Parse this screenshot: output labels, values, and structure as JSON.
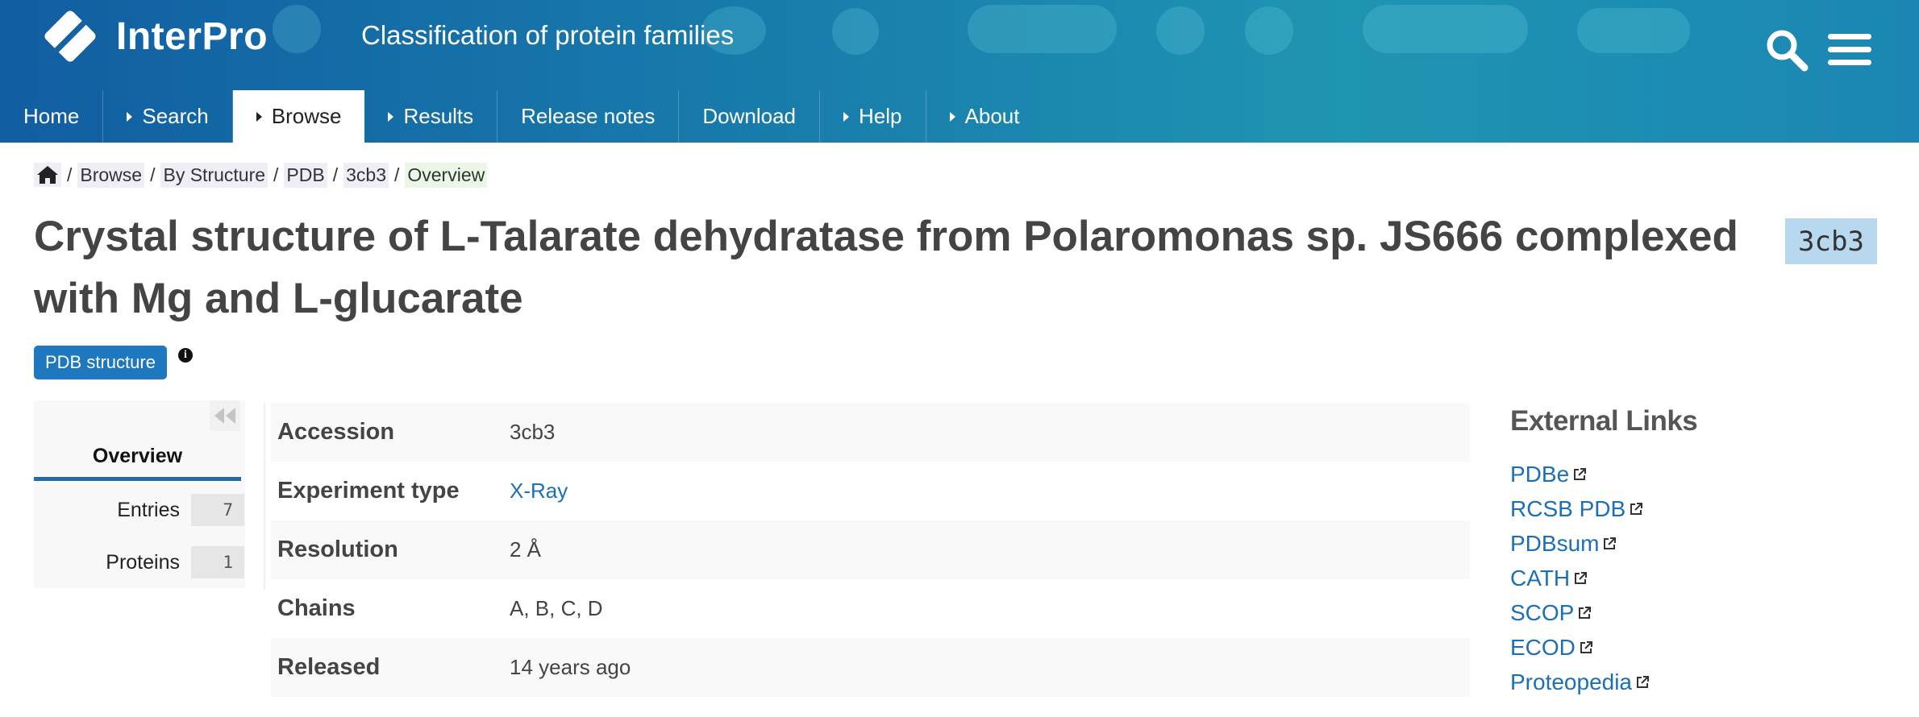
{
  "header": {
    "logo_text": "InterPro",
    "tagline": "Classification of protein families",
    "search_icon": "search-icon",
    "menu_icon": "hamburger-menu-icon",
    "colors": {
      "gradient_start": "#115ea2",
      "gradient_end": "#1e95b2"
    }
  },
  "nav": {
    "items": [
      {
        "label": "Home",
        "arrow": false,
        "active": false
      },
      {
        "label": "Search",
        "arrow": true,
        "active": false
      },
      {
        "label": "Browse",
        "arrow": true,
        "active": true
      },
      {
        "label": "Results",
        "arrow": true,
        "active": false
      },
      {
        "label": "Release notes",
        "arrow": false,
        "active": false
      },
      {
        "label": "Download",
        "arrow": false,
        "active": false
      },
      {
        "label": "Help",
        "arrow": true,
        "active": false
      },
      {
        "label": "About",
        "arrow": true,
        "active": false
      }
    ]
  },
  "breadcrumb": {
    "home_icon": "home-icon",
    "separator": "/",
    "items": [
      "Browse",
      "By Structure",
      "PDB",
      "3cb3",
      "Overview"
    ]
  },
  "page": {
    "title": "Crystal structure of L-Talarate dehydratase from Polaromonas sp. JS666 complexed with Mg and L-glucarate",
    "accession_badge": "3cb3",
    "type_badge": "PDB structure",
    "info_icon": "info-icon",
    "badge_color": "#1e78c0",
    "accession_badge_color": "#b7d8ef"
  },
  "sidebar": {
    "collapse_icon": "double-chevron-left-icon",
    "overview_label": "Overview",
    "items": [
      {
        "label": "Entries",
        "count": "7"
      },
      {
        "label": "Proteins",
        "count": "1"
      }
    ]
  },
  "details": {
    "rows": [
      {
        "key": "Accession",
        "value": "3cb3",
        "link": false
      },
      {
        "key": "Experiment type",
        "value": "X-Ray",
        "link": true
      },
      {
        "key": "Resolution",
        "value": "2 Å",
        "link": false
      },
      {
        "key": "Chains",
        "value": "A, B, C, D",
        "link": false
      },
      {
        "key": "Released",
        "value": "14 years ago",
        "link": false
      }
    ]
  },
  "external_links": {
    "title": "External Links",
    "link_icon": "external-link-icon",
    "items": [
      "PDBe",
      "RCSB PDB",
      "PDBsum",
      "CATH",
      "SCOP",
      "ECOD",
      "Proteopedia"
    ]
  }
}
